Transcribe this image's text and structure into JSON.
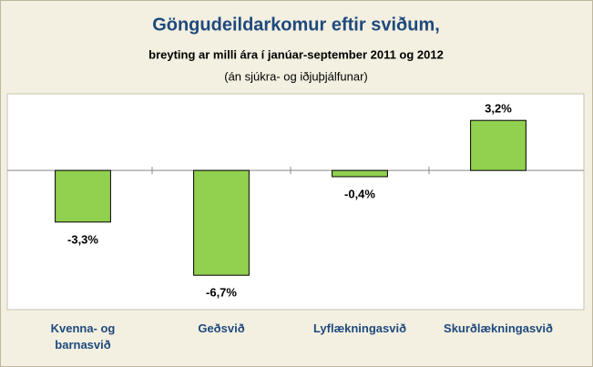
{
  "chart_data": {
    "type": "bar",
    "title": "Göngudeildarkomur eftir sviðum,",
    "subtitle": "breyting ar milli ára í  janúar-september 2011 og 2012",
    "note": "(án sjúkra- og iðjuþjálfunar)",
    "categories": [
      "Kvenna- og barnasvið",
      "Geðsvið",
      "Lyflækningasvið",
      "Skurðlækningasvið"
    ],
    "values": [
      -3.3,
      -6.7,
      -0.4,
      3.2
    ],
    "value_labels": [
      "-3,3%",
      "-6,7%",
      "-0,4%",
      "3,2%"
    ],
    "color": "#92d050",
    "ylim": [
      -8.9,
      4.9
    ],
    "grid": false
  }
}
